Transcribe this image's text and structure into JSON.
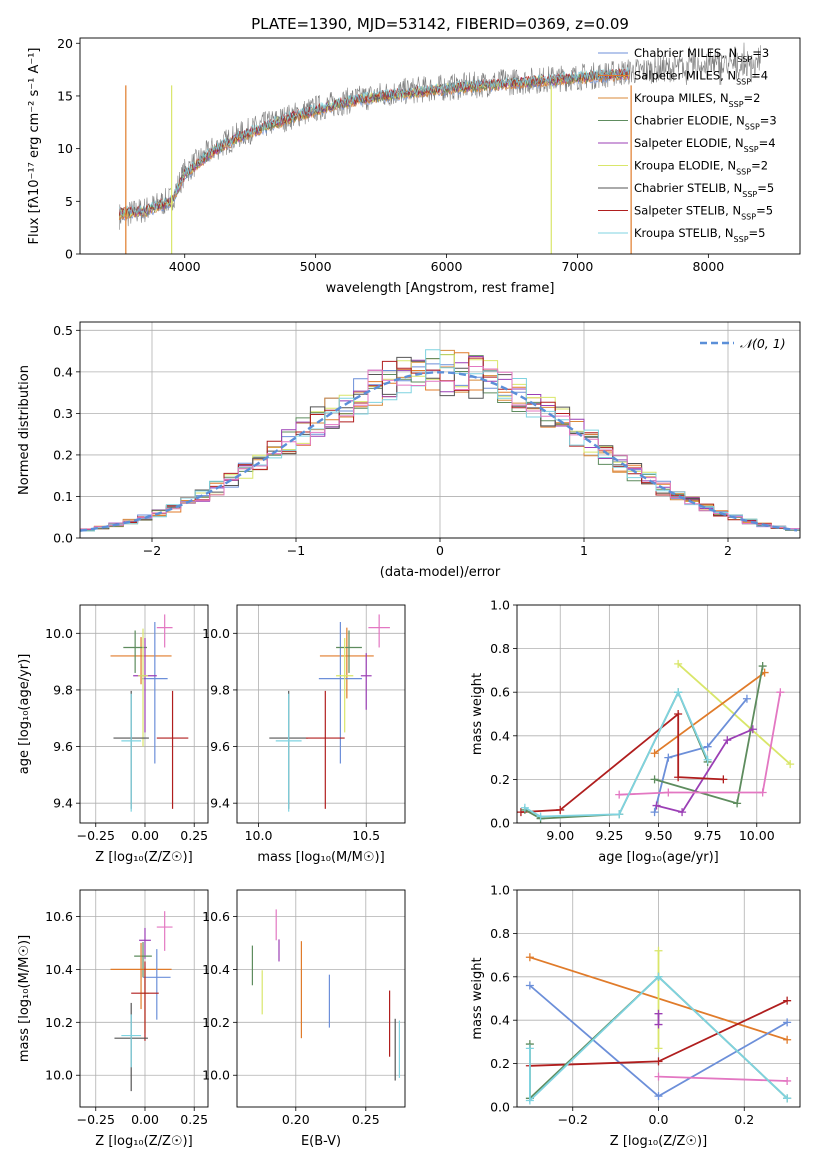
{
  "figure": {
    "title": "PLATE=1390, MJD=53142, FIBERID=0369, z=0.09"
  },
  "legend_colors": {
    "Chabrier MILES": "#6c8fd9",
    "Salpeter MILES": "#e07b2a",
    "Kroupa MILES": "#d88a3a",
    "Chabrier ELODIE": "#5e8c5e",
    "Salpeter ELODIE": "#9b3fb5",
    "Kroupa ELODIE": "#d9e66a",
    "Chabrier STELIB": "#555555",
    "Salpeter STELIB": "#b01e1e",
    "Kroupa STELIB": "#7fd3e0"
  },
  "chart_data": [
    {
      "id": "spectrum",
      "type": "line",
      "xlabel": "wavelength [Angstrom, rest frame]",
      "ylabel": "Flux [fλ10⁻¹⁷ erg cm⁻² s⁻¹ A⁻¹]",
      "xlim": [
        3200,
        8700
      ],
      "ylim": [
        0,
        20.5
      ],
      "xticks": [
        4000,
        5000,
        6000,
        7000,
        8000
      ],
      "yticks": [
        0,
        5,
        10,
        15,
        20
      ],
      "legend_placement": "upper right",
      "legend": [
        {
          "label": "Chabrier MILES, N",
          "sub": "SSP",
          "tail": "=3",
          "color": "#6c8fd9"
        },
        {
          "label": "Salpeter MILES, N",
          "sub": "SSP",
          "tail": "=4",
          "color": "#e07b2a"
        },
        {
          "label": "Kroupa MILES, N",
          "sub": "SSP",
          "tail": "=2",
          "color": "#d88a3a"
        },
        {
          "label": "Chabrier ELODIE, N",
          "sub": "SSP",
          "tail": "=3",
          "color": "#5e8c5e"
        },
        {
          "label": "Salpeter ELODIE, N",
          "sub": "SSP",
          "tail": "=4",
          "color": "#9b3fb5"
        },
        {
          "label": "Kroupa ELODIE, N",
          "sub": "SSP",
          "tail": "=2",
          "color": "#d9e66a"
        },
        {
          "label": "Chabrier STELIB, N",
          "sub": "SSP",
          "tail": "=5",
          "color": "#555555"
        },
        {
          "label": "Salpeter STELIB, N",
          "sub": "SSP",
          "tail": "=5",
          "color": "#b01e1e"
        },
        {
          "label": "Kroupa STELIB, N",
          "sub": "SSP",
          "tail": "=5",
          "color": "#7fd3e0"
        }
      ],
      "data_x": [
        3500,
        3700,
        3900,
        4000,
        4200,
        4400,
        4600,
        4800,
        5000,
        5200,
        5400,
        5600,
        5800,
        6000,
        6200,
        6400,
        6600,
        6800,
        7000,
        7200,
        7400,
        7600,
        7800,
        8000,
        8200,
        8400
      ],
      "data_y": [
        3.6,
        4.2,
        5.2,
        7.8,
        9.8,
        11.2,
        12.2,
        13.0,
        13.8,
        14.4,
        14.9,
        15.3,
        15.6,
        15.8,
        16.0,
        16.3,
        16.4,
        16.6,
        16.8,
        17.0,
        17.3,
        17.5,
        17.7,
        17.9,
        17.9,
        18.1
      ],
      "model_x": [
        3500,
        3700,
        3900,
        4000,
        4200,
        4400,
        4600,
        4800,
        5000,
        5200,
        5400,
        5600,
        5800,
        6000,
        6200,
        6400,
        6600,
        6800,
        7000,
        7200,
        7400
      ],
      "model_y": [
        3.8,
        4.1,
        5.0,
        7.5,
        9.6,
        11.0,
        12.0,
        12.9,
        13.6,
        14.3,
        14.8,
        15.1,
        15.4,
        15.7,
        15.9,
        16.1,
        16.3,
        16.5,
        16.7,
        16.9,
        17.1
      ]
    },
    {
      "id": "residuals",
      "type": "bar",
      "xlabel": "(data-model)/error",
      "ylabel": "Normed distribution",
      "xlim": [
        -2.5,
        2.5
      ],
      "ylim": [
        0,
        0.52
      ],
      "xticks": [
        -2,
        -1,
        0,
        1,
        2
      ],
      "yticks": [
        0.0,
        0.1,
        0.2,
        0.3,
        0.4,
        0.5
      ],
      "grid": true,
      "legend_placement": "upper right",
      "legend_label": "𝒩(0, 1)",
      "normal_color": "#5b8fd8",
      "bin_width": 0.1
    },
    {
      "id": "age_vs_Z",
      "type": "scatter",
      "xlabel": "Z [log₁₀(Z/Z☉)]",
      "ylabel": "age  [log₁₀(age/yr)]",
      "xlim": [
        -0.33,
        0.32
      ],
      "ylim": [
        9.33,
        10.1
      ],
      "xticks": [
        -0.25,
        0.0,
        0.25
      ],
      "yticks": [
        9.4,
        9.6,
        9.8,
        10.0
      ],
      "grid": true,
      "points": [
        {
          "x": 0.1,
          "y": 10.02,
          "xerr": 0.08,
          "yerr": 0.07,
          "color": "#e377c2"
        },
        {
          "x": -0.02,
          "y": 9.92,
          "xerr": 0.31,
          "yerr": 0.1,
          "color": "#e07b2a"
        },
        {
          "x": 0.05,
          "y": 9.84,
          "xerr": 0.13,
          "yerr": 0.3,
          "color": "#6c8fd9"
        },
        {
          "x": -0.05,
          "y": 9.95,
          "xerr": 0.12,
          "yerr": 0.09,
          "color": "#5e8c5e"
        },
        {
          "x": 0.0,
          "y": 9.85,
          "xerr": 0.12,
          "yerr": 0.2,
          "color": "#9b3fb5"
        },
        {
          "x": -0.01,
          "y": 9.85,
          "xerr": 0.05,
          "yerr": 0.25,
          "color": "#d9e66a"
        },
        {
          "x": -0.07,
          "y": 9.63,
          "xerr": 0.18,
          "yerr": 0.25,
          "color": "#555555"
        },
        {
          "x": 0.14,
          "y": 9.63,
          "xerr": 0.16,
          "yerr": 0.25,
          "color": "#b01e1e"
        },
        {
          "x": -0.07,
          "y": 9.62,
          "xerr": 0.1,
          "yerr": 0.25,
          "color": "#7fd3e0"
        }
      ]
    },
    {
      "id": "age_vs_mass",
      "type": "scatter",
      "xlabel": "mass [log₁₀(M/M☉)]",
      "ylabel": "",
      "xlim": [
        9.9,
        10.68
      ],
      "ylim": [
        9.33,
        10.1
      ],
      "xticks": [
        10.0,
        10.5
      ],
      "yticks": [
        9.4,
        9.6,
        9.8,
        10.0
      ],
      "grid": true,
      "points": [
        {
          "x": 10.56,
          "y": 10.02,
          "xerr": 0.1,
          "yerr": 0.07,
          "color": "#e377c2"
        },
        {
          "x": 10.41,
          "y": 9.92,
          "xerr": 0.25,
          "yerr": 0.15,
          "color": "#e07b2a"
        },
        {
          "x": 10.38,
          "y": 9.84,
          "xerr": 0.2,
          "yerr": 0.3,
          "color": "#6c8fd9"
        },
        {
          "x": 10.42,
          "y": 9.95,
          "xerr": 0.12,
          "yerr": 0.09,
          "color": "#5e8c5e"
        },
        {
          "x": 10.5,
          "y": 9.85,
          "xerr": 0.05,
          "yerr": 0.12,
          "color": "#9b3fb5"
        },
        {
          "x": 10.4,
          "y": 9.85,
          "xerr": 0.08,
          "yerr": 0.2,
          "color": "#d9e66a"
        },
        {
          "x": 10.14,
          "y": 9.63,
          "xerr": 0.18,
          "yerr": 0.25,
          "color": "#555555"
        },
        {
          "x": 10.31,
          "y": 9.63,
          "xerr": 0.18,
          "yerr": 0.25,
          "color": "#b01e1e"
        },
        {
          "x": 10.14,
          "y": 9.62,
          "xerr": 0.12,
          "yerr": 0.25,
          "color": "#7fd3e0"
        }
      ]
    },
    {
      "id": "weight_vs_age",
      "type": "line",
      "xlabel": "age  [log₁₀(age/yr)]",
      "ylabel": "mass weight",
      "xlim": [
        8.78,
        10.22
      ],
      "ylim": [
        0,
        1.0
      ],
      "xticks": [
        9.0,
        9.25,
        9.5,
        9.75,
        10.0
      ],
      "yticks": [
        0.0,
        0.2,
        0.4,
        0.6,
        0.8,
        1.0
      ],
      "grid": true,
      "series": [
        {
          "color": "#d9e66a",
          "x": [
            9.6,
            10.17
          ],
          "y": [
            0.73,
            0.27
          ]
        },
        {
          "color": "#e07b2a",
          "x": [
            9.48,
            10.04
          ],
          "y": [
            0.32,
            0.69
          ]
        },
        {
          "color": "#6c8fd9",
          "x": [
            9.48,
            9.55,
            9.75,
            9.95
          ],
          "y": [
            0.05,
            0.3,
            0.35,
            0.57
          ]
        },
        {
          "color": "#5e8c5e",
          "x": [
            9.48,
            9.9,
            10.03
          ],
          "y": [
            0.2,
            0.09,
            0.72
          ]
        },
        {
          "color": "#9b3fb5",
          "x": [
            9.49,
            9.62,
            9.85,
            9.98
          ],
          "y": [
            0.08,
            0.05,
            0.38,
            0.43
          ]
        },
        {
          "color": "#e377c2",
          "x": [
            9.3,
            9.55,
            10.03,
            10.12
          ],
          "y": [
            0.13,
            0.14,
            0.14,
            0.6
          ]
        },
        {
          "color": "#b01e1e",
          "x": [
            8.8,
            9.0,
            9.6,
            9.6,
            9.83
          ],
          "y": [
            0.05,
            0.06,
            0.5,
            0.21,
            0.2
          ]
        },
        {
          "color": "#5e8c5e",
          "x": [
            8.82,
            8.9,
            9.3,
            9.6,
            9.75
          ],
          "y": [
            0.06,
            0.02,
            0.04,
            0.6,
            0.28
          ]
        },
        {
          "color": "#7fd3e0",
          "x": [
            8.82,
            8.9,
            9.3,
            9.6,
            9.75
          ],
          "y": [
            0.07,
            0.03,
            0.04,
            0.6,
            0.29
          ]
        }
      ]
    },
    {
      "id": "mass_vs_Z",
      "type": "scatter",
      "xlabel": "Z [log₁₀(Z/Z☉)]",
      "ylabel": "mass [log₁₀(M/M☉)]",
      "xlim": [
        -0.33,
        0.32
      ],
      "ylim": [
        9.88,
        10.7
      ],
      "xticks": [
        -0.25,
        0.0,
        0.25
      ],
      "yticks": [
        10.0,
        10.2,
        10.4,
        10.6
      ],
      "grid": true,
      "points": [
        {
          "x": 0.1,
          "y": 10.56,
          "xerr": 0.08,
          "yerr": 0.09,
          "color": "#e377c2"
        },
        {
          "x": 0.0,
          "y": 10.51,
          "xerr": 0.06,
          "yerr": 0.07,
          "color": "#9b3fb5"
        },
        {
          "x": -0.01,
          "y": 10.45,
          "xerr": 0.09,
          "yerr": 0.08,
          "color": "#5e8c5e"
        },
        {
          "x": -0.02,
          "y": 10.4,
          "xerr": 0.31,
          "yerr": 0.15,
          "color": "#e07b2a"
        },
        {
          "x": 0.06,
          "y": 10.37,
          "xerr": 0.14,
          "yerr": 0.16,
          "color": "#6c8fd9"
        },
        {
          "x": 0.0,
          "y": 10.31,
          "xerr": 0.04,
          "yerr": 0.15,
          "color": "#d9e66a"
        },
        {
          "x": 0.0,
          "y": 10.31,
          "xerr": 0.14,
          "yerr": 0.18,
          "color": "#b01e1e"
        },
        {
          "x": -0.07,
          "y": 10.14,
          "xerr": 0.17,
          "yerr": 0.2,
          "color": "#555555"
        },
        {
          "x": -0.07,
          "y": 10.15,
          "xerr": 0.1,
          "yerr": 0.12,
          "color": "#7fd3e0"
        }
      ]
    },
    {
      "id": "mass_vs_ebv",
      "type": "scatter",
      "xlabel": "E(B-V)",
      "ylabel": "",
      "xlim": [
        0.158,
        0.278
      ],
      "ylim": [
        9.88,
        10.7
      ],
      "xticks": [
        0.2,
        0.25
      ],
      "yticks": [
        10.0,
        10.2,
        10.4,
        10.6
      ],
      "grid": true,
      "points": [
        {
          "x": 0.169,
          "y": 10.43,
          "yerr": 0.09,
          "color": "#5e8c5e"
        },
        {
          "x": 0.176,
          "y": 10.33,
          "yerr": 0.1,
          "color": "#d9e66a"
        },
        {
          "x": 0.186,
          "y": 10.58,
          "yerr": 0.07,
          "color": "#e377c2"
        },
        {
          "x": 0.188,
          "y": 10.48,
          "yerr": 0.05,
          "color": "#9b3fb5"
        },
        {
          "x": 0.204,
          "y": 10.36,
          "yerr": 0.22,
          "color": "#e07b2a"
        },
        {
          "x": 0.224,
          "y": 10.3,
          "yerr": 0.12,
          "color": "#6c8fd9"
        },
        {
          "x": 0.267,
          "y": 10.22,
          "yerr": 0.15,
          "color": "#b01e1e"
        },
        {
          "x": 0.271,
          "y": 10.12,
          "yerr": 0.14,
          "color": "#555555"
        },
        {
          "x": 0.274,
          "y": 10.12,
          "yerr": 0.13,
          "color": "#7fd3e0"
        }
      ]
    },
    {
      "id": "weight_vs_Z",
      "type": "line",
      "xlabel": "Z [log₁₀(Z/Z☉)]",
      "ylabel": "mass weight",
      "xlim": [
        -0.33,
        0.33
      ],
      "ylim": [
        0,
        1.0
      ],
      "xticks": [
        -0.2,
        0.0,
        0.2
      ],
      "yticks": [
        0.0,
        0.2,
        0.4,
        0.6,
        0.8,
        1.0
      ],
      "grid": true,
      "series": [
        {
          "color": "#e07b2a",
          "x": [
            -0.3,
            0.3
          ],
          "y": [
            0.69,
            0.31
          ]
        },
        {
          "color": "#6c8fd9",
          "x": [
            -0.3,
            0.0,
            0.3
          ],
          "y": [
            0.56,
            0.05,
            0.39
          ]
        },
        {
          "color": "#b01e1e",
          "x": [
            -0.3,
            0.0,
            0.3
          ],
          "y": [
            0.19,
            0.21,
            0.49
          ]
        },
        {
          "color": "#e377c2",
          "x": [
            0.0,
            0.3
          ],
          "y": [
            0.14,
            0.12
          ]
        },
        {
          "color": "#d9e66a",
          "x": [
            0.0,
            0.0
          ],
          "y": [
            0.72,
            0.27
          ]
        },
        {
          "color": "#9b3fb5",
          "x": [
            0.0,
            0.0
          ],
          "y": [
            0.43,
            0.38
          ]
        },
        {
          "color": "#5e8c5e",
          "x": [
            -0.3,
            -0.3,
            0.0,
            0.3
          ],
          "y": [
            0.29,
            0.04,
            0.6,
            0.04
          ]
        },
        {
          "color": "#7fd3e0",
          "x": [
            -0.3,
            -0.3,
            0.0,
            0.3
          ],
          "y": [
            0.27,
            0.03,
            0.6,
            0.04
          ]
        }
      ]
    }
  ]
}
